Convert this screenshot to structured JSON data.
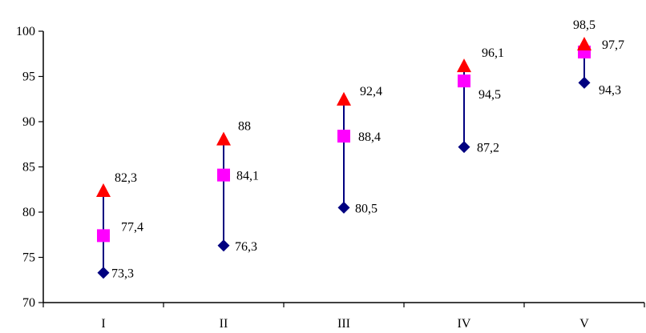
{
  "chart_data": {
    "type": "scatter",
    "categories": [
      "I",
      "II",
      "III",
      "IV",
      "V"
    ],
    "ylim": [
      70,
      100
    ],
    "yticks": [
      70,
      75,
      80,
      85,
      90,
      95,
      100
    ],
    "ytick_labels": [
      "70",
      "75",
      "80",
      "85",
      "90",
      "95",
      "100"
    ],
    "grid": false,
    "legend": "none",
    "series": [
      {
        "values": [
          73.3,
          76.3,
          80.5,
          87.2,
          94.3
        ],
        "labels": [
          "73,3",
          "76,3",
          "80,5",
          "87,2",
          "94,3"
        ],
        "marker": "diamond",
        "color": "#000080"
      },
      {
        "values": [
          77.4,
          84.1,
          88.4,
          94.5,
          97.7
        ],
        "labels": [
          "77,4",
          "84,1",
          "88,4",
          "94,5",
          "97,7"
        ],
        "marker": "square",
        "color": "#FF00FF"
      },
      {
        "values": [
          82.3,
          88.0,
          92.4,
          96.1,
          98.5
        ],
        "labels": [
          "82,3",
          "88",
          "92,4",
          "96,1",
          "98,5"
        ],
        "marker": "triangle",
        "color": "#FF0000"
      }
    ],
    "range_line_color": "#000080",
    "axis_color": "#000000"
  }
}
